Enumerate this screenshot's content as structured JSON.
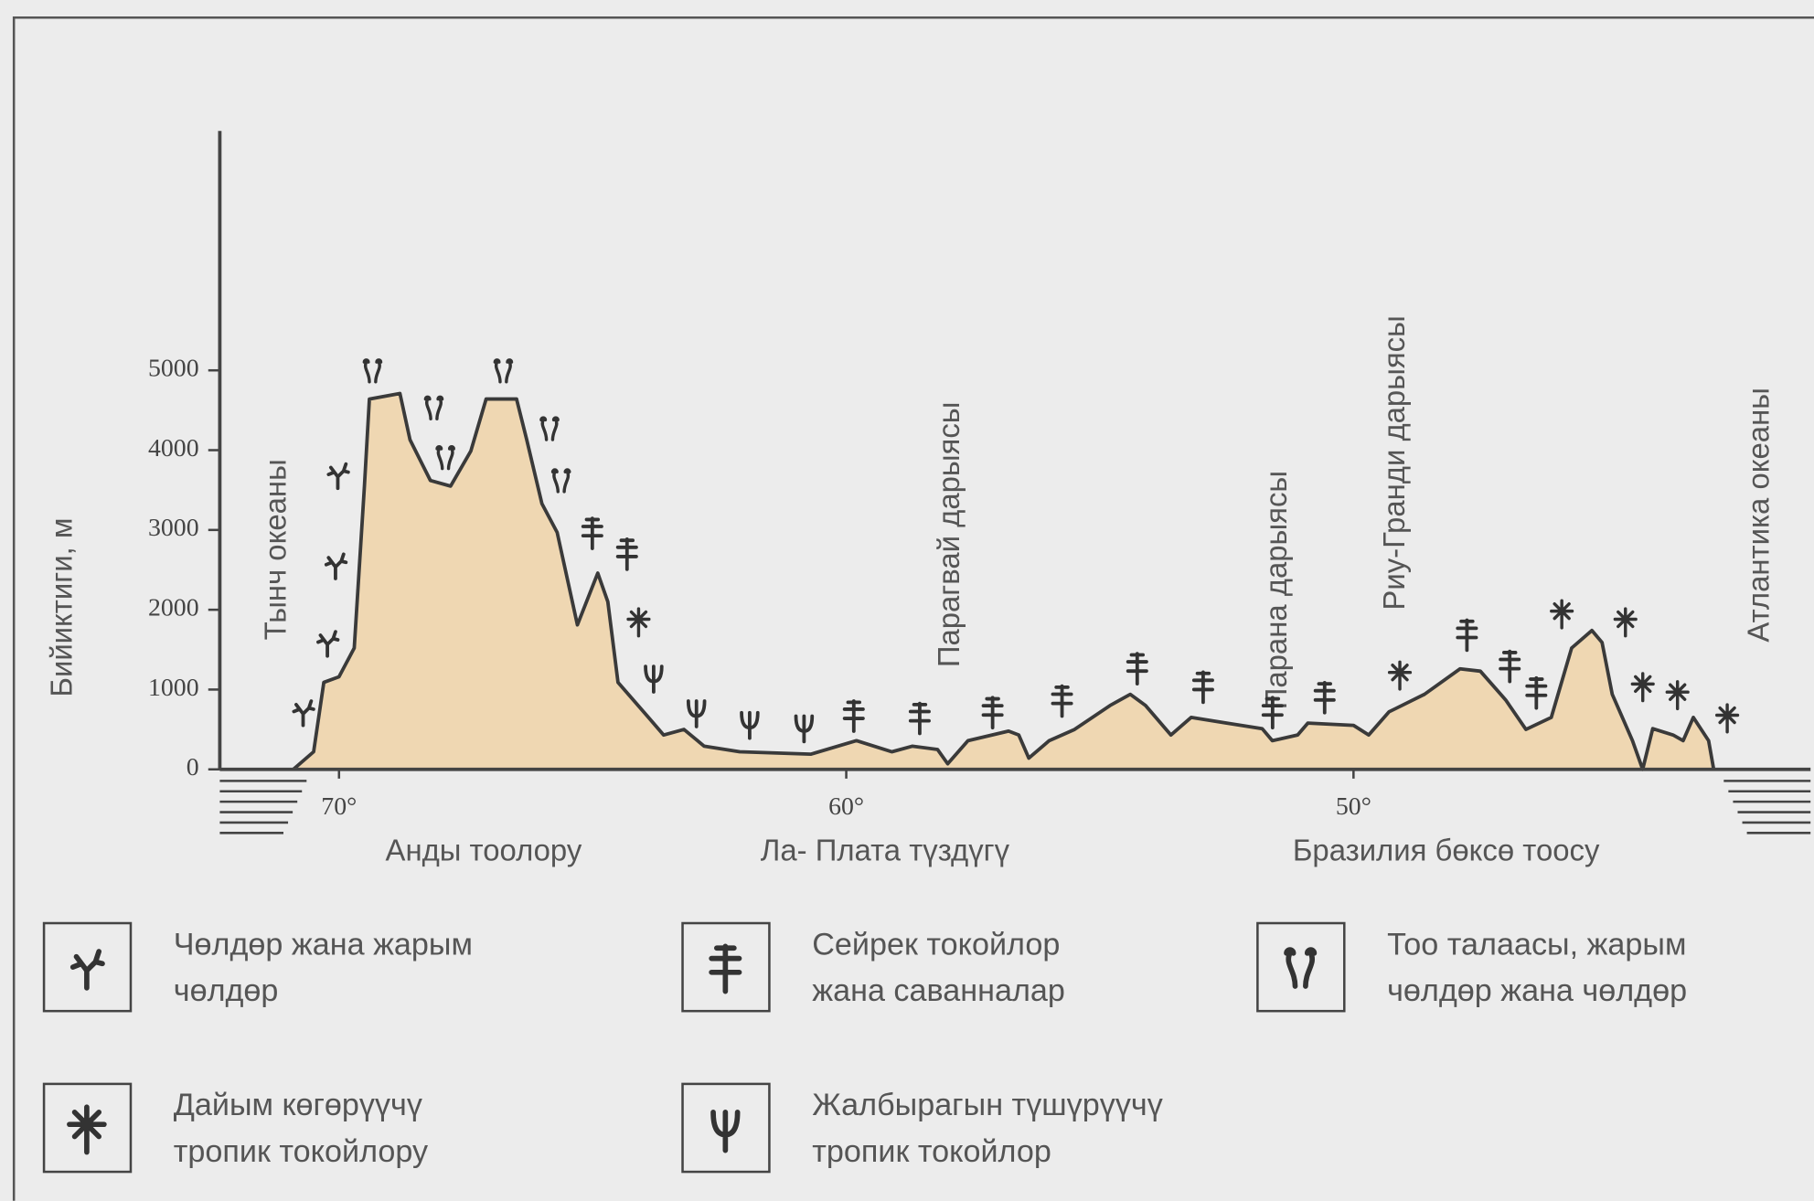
{
  "chart_data": {
    "type": "area",
    "y_label": "Бийиктиги, м",
    "x": [
      70.9,
      70.5,
      70.3,
      70.0,
      69.7,
      69.5,
      69.4,
      68.8,
      68.6,
      68.2,
      67.8,
      67.4,
      67.1,
      66.5,
      66.3,
      66.0,
      65.7,
      65.3,
      64.9,
      64.7,
      64.5,
      63.9,
      63.6,
      63.2,
      62.8,
      62.1,
      60.7,
      59.8,
      59.1,
      58.7,
      58.2,
      58.0,
      57.6,
      56.8,
      56.6,
      56.4,
      56.0,
      55.5,
      54.8,
      54.4,
      54.1,
      53.6,
      53.2,
      52.5,
      51.8,
      51.6,
      51.1,
      50.9,
      50.0,
      49.7,
      49.3,
      48.6,
      47.9,
      47.5,
      47.0,
      46.6,
      46.1,
      45.7,
      45.3,
      45.1,
      44.9,
      44.5,
      44.3,
      44.1,
      43.7,
      43.5,
      43.3,
      43.0,
      42.9
    ],
    "values": [
      0,
      220,
      1090,
      1160,
      1520,
      3550,
      4640,
      4710,
      4130,
      3620,
      3550,
      3990,
      4640,
      4640,
      4130,
      3330,
      2970,
      1810,
      2460,
      2100,
      1090,
      650,
      430,
      500,
      290,
      220,
      190,
      360,
      220,
      290,
      250,
      70,
      360,
      480,
      430,
      140,
      360,
      500,
      800,
      940,
      800,
      430,
      650,
      580,
      510,
      360,
      430,
      580,
      550,
      430,
      720,
      940,
      1260,
      1230,
      870,
      500,
      650,
      1520,
      1740,
      1590,
      940,
      360,
      0,
      510,
      430,
      360,
      650,
      360,
      0
    ],
    "color": "#efd7b2",
    "line_color": "#3a3a3a",
    "xlim": [
      72.35,
      40.99
    ],
    "xticks": [
      {
        "value": 70,
        "label": "70°"
      },
      {
        "value": 60,
        "label": "60°"
      },
      {
        "value": 50,
        "label": "50°"
      }
    ],
    "ylim": [
      0,
      8000
    ],
    "yticks": [
      0,
      1000,
      2000,
      3000,
      4000,
      5000
    ],
    "annotations": [
      "Тынч океаны",
      "Парагвай дарыясы",
      "Парана дарыясы",
      "Риу-Гранди дарыясы",
      "Атлантика океаны"
    ],
    "regions": [
      "Анды тоолору",
      "Ла- Плата түздүгү",
      "Бразилия бөксө тоосу"
    ],
    "legend": [
      {
        "lines": [
          "Чөлдөр жана жарым",
          "чөлдөр"
        ]
      },
      {
        "lines": [
          "Сейрек токойлор",
          "жана саванналар"
        ]
      },
      {
        "lines": [
          "Тоо талаасы, жарым",
          "чөлдөр жана чөлдөр"
        ]
      },
      {
        "lines": [
          "Дайым көгөрүүчү",
          "тропик токойлору"
        ]
      },
      {
        "lines": [
          "Жалбырагын түшүрүүчү",
          "тропик токойлор"
        ]
      }
    ]
  }
}
